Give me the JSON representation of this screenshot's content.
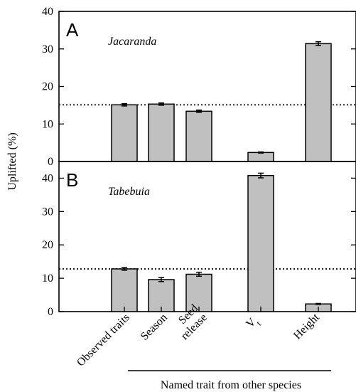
{
  "chart_data": {
    "type": "bar",
    "ylabel": "Uplifted (%)",
    "categories": [
      "Observed traits",
      "Season",
      "Seed\nrelease",
      "V_t",
      "Height"
    ],
    "group_label": "Named trait from other species",
    "colors": {
      "bar_fill": "#c0c0c0",
      "bar_stroke": "#000000",
      "reference_line": "#000000"
    },
    "panels": [
      {
        "letter": "A",
        "title": "Jacaranda",
        "ylim": [
          0,
          40
        ],
        "yticks": [
          "0",
          "10",
          "20",
          "30",
          "40"
        ],
        "values": [
          15.1,
          15.3,
          13.4,
          2.4,
          31.4
        ],
        "errors": [
          0.3,
          0.3,
          0.3,
          0.15,
          0.5
        ],
        "reference_line": 15.1
      },
      {
        "letter": "B",
        "title": "Tabebuia",
        "ylim": [
          0,
          45
        ],
        "yticks": [
          "0",
          "10",
          "20",
          "30",
          "40"
        ],
        "values": [
          12.8,
          9.6,
          11.2,
          40.8,
          2.3
        ],
        "errors": [
          0.4,
          0.6,
          0.6,
          0.7,
          0.15
        ],
        "reference_line": 12.8
      }
    ]
  }
}
